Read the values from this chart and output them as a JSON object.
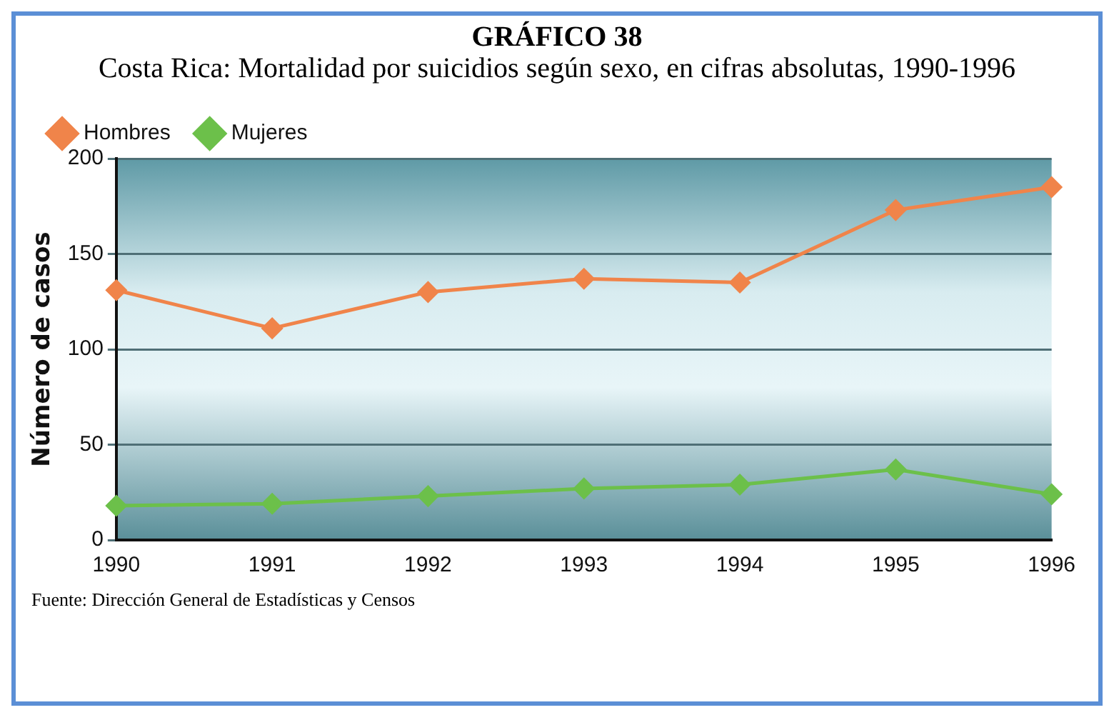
{
  "chart_data": {
    "type": "line",
    "title": "GRÁFICO 38",
    "subtitle": "Costa Rica: Mortalidad por suicidios según sexo, en cifras absolutas, 1990-1996",
    "ylabel": "Número de casos",
    "annotations": [
      "Fuente:  Dirección General de Estadísticas y Censos"
    ],
    "categories": [
      "1990",
      "1991",
      "1992",
      "1993",
      "1994",
      "1995",
      "1996"
    ],
    "series": [
      {
        "name": "Hombres",
        "color": "#f0844a",
        "values": [
          131,
          111,
          130,
          137,
          135,
          173,
          185
        ]
      },
      {
        "name": "Mujeres",
        "color": "#6cc04a",
        "values": [
          18,
          19,
          23,
          27,
          29,
          37,
          24
        ]
      }
    ],
    "ylim": [
      0,
      200
    ],
    "yticks": [
      0,
      50,
      100,
      150,
      200
    ],
    "grid": "y",
    "legend": "top left",
    "marker": "diamond",
    "line_style": "solid"
  }
}
